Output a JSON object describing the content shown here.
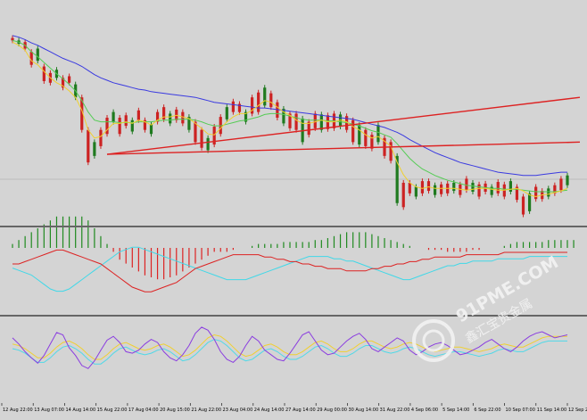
{
  "chart_data": {
    "type": "line",
    "panels": [
      "price",
      "macd",
      "stochastic"
    ],
    "time_labels": [
      "12 Aug 22:00",
      "13 Aug 07:00",
      "14 Aug 14:00",
      "15 Aug 22:00",
      "17 Aug 04:00",
      "20 Aug 15:00",
      "21 Aug 22:00",
      "23 Aug 04:00",
      "24 Aug 14:00",
      "27 Aug 14:00",
      "29 Aug 00:00",
      "30 Aug 14:00",
      "31 Aug 22:00",
      "4 Sep 06:00",
      "5 Sep 14:00",
      "6 Sep 22:00",
      "10 Sep 07:00",
      "11 Sep 14:00",
      "12 Sep 22:00"
    ],
    "price": {
      "candles": [
        [
          27,
          30
        ],
        [
          30,
          34
        ],
        [
          32,
          40
        ],
        [
          44,
          60
        ],
        [
          40,
          55
        ],
        [
          62,
          80
        ],
        [
          70,
          82
        ],
        [
          66,
          76
        ],
        [
          76,
          88
        ],
        [
          74,
          82
        ],
        [
          84,
          100
        ],
        [
          100,
          140
        ],
        [
          140,
          180
        ],
        [
          155,
          172
        ],
        [
          140,
          160
        ],
        [
          125,
          145
        ],
        [
          118,
          130
        ],
        [
          125,
          145
        ],
        [
          122,
          135
        ],
        [
          128,
          142
        ],
        [
          116,
          128
        ],
        [
          128,
          140
        ],
        [
          133,
          145
        ],
        [
          118,
          130
        ],
        [
          112,
          127
        ],
        [
          120,
          132
        ],
        [
          115,
          128
        ],
        [
          118,
          132
        ],
        [
          124,
          140
        ],
        [
          130,
          155
        ],
        [
          140,
          162
        ],
        [
          150,
          165
        ],
        [
          136,
          158
        ],
        [
          124,
          145
        ],
        [
          112,
          127
        ],
        [
          105,
          118
        ],
        [
          108,
          118
        ],
        [
          118,
          130
        ],
        [
          100,
          120
        ],
        [
          94,
          118
        ],
        [
          88,
          110
        ],
        [
          95,
          112
        ],
        [
          106,
          125
        ],
        [
          114,
          132
        ],
        [
          120,
          138
        ],
        [
          120,
          140
        ],
        [
          126,
          155
        ],
        [
          130,
          146
        ],
        [
          120,
          138
        ],
        [
          121,
          140
        ],
        [
          122,
          139
        ],
        [
          120,
          138
        ],
        [
          121,
          136
        ],
        [
          123,
          140
        ],
        [
          128,
          155
        ],
        [
          134,
          158
        ],
        [
          140,
          160
        ],
        [
          146,
          163
        ],
        [
          134,
          155
        ],
        [
          150,
          172
        ],
        [
          155,
          178
        ],
        [
          172,
          230
        ],
        [
          205,
          235
        ],
        [
          205,
          218
        ],
        [
          210,
          222
        ],
        [
          203,
          218
        ],
        [
          203,
          215
        ],
        [
          208,
          220
        ],
        [
          207,
          219
        ],
        [
          206,
          218
        ],
        [
          205,
          215
        ],
        [
          207,
          220
        ],
        [
          200,
          214
        ],
        [
          205,
          216
        ],
        [
          207,
          222
        ],
        [
          206,
          216
        ],
        [
          210,
          220
        ],
        [
          204,
          218
        ],
        [
          207,
          222
        ],
        [
          203,
          216
        ],
        [
          210,
          226
        ],
        [
          222,
          244
        ],
        [
          218,
          240
        ],
        [
          210,
          225
        ],
        [
          215,
          225
        ],
        [
          212,
          222
        ],
        [
          208,
          218
        ],
        [
          200,
          214
        ],
        [
          196,
          208
        ]
      ],
      "ma_fast": [
        32,
        36,
        42,
        55,
        60,
        68,
        76,
        82,
        86,
        92,
        100,
        116,
        140,
        150,
        148,
        140,
        132,
        132,
        130,
        132,
        128,
        130,
        134,
        128,
        124,
        124,
        122,
        124,
        126,
        132,
        138,
        145,
        146,
        138,
        130,
        124,
        120,
        120,
        116,
        110,
        104,
        106,
        112,
        118,
        122,
        128,
        132,
        132,
        130,
        128,
        130,
        130,
        128,
        130,
        136,
        140,
        146,
        150,
        148,
        154,
        160,
        180,
        195,
        205,
        210,
        212,
        210,
        212,
        212,
        212,
        212,
        213,
        214,
        213,
        212,
        212,
        213,
        214,
        214,
        213,
        212,
        215,
        220,
        222,
        220,
        219,
        217,
        215,
        212
      ],
      "ma_mid": [
        30,
        32,
        36,
        44,
        50,
        57,
        64,
        71,
        77,
        84,
        92,
        104,
        118,
        128,
        130,
        130,
        130,
        131,
        131,
        131,
        130,
        130,
        130,
        129,
        128,
        128,
        127,
        127,
        127,
        128,
        130,
        133,
        135,
        135,
        133,
        131,
        129,
        128,
        126,
        124,
        121,
        120,
        120,
        121,
        123,
        125,
        127,
        128,
        128,
        128,
        129,
        129,
        130,
        131,
        133,
        135,
        138,
        141,
        143,
        146,
        149,
        157,
        166,
        175,
        182,
        188,
        192,
        196,
        199,
        202,
        204,
        206,
        208,
        209,
        210,
        211,
        212,
        212,
        213,
        213,
        213,
        214,
        215,
        216,
        216,
        216,
        216,
        215,
        214
      ],
      "ma_slow": [
        24,
        26,
        29,
        33,
        36,
        40,
        44,
        48,
        52,
        55,
        58,
        62,
        67,
        72,
        76,
        79,
        82,
        84,
        86,
        88,
        90,
        91,
        93,
        94,
        95,
        96,
        97,
        98,
        99,
        100,
        102,
        104,
        106,
        107,
        108,
        109,
        110,
        111,
        112,
        113,
        113,
        114,
        115,
        116,
        117,
        118,
        119,
        120,
        121,
        122,
        123,
        124,
        125,
        126,
        127,
        129,
        131,
        133,
        135,
        137,
        140,
        143,
        147,
        152,
        156,
        160,
        164,
        168,
        171,
        174,
        177,
        180,
        182,
        184,
        186,
        188,
        190,
        192,
        193,
        194,
        195,
        196,
        196,
        196,
        195,
        194,
        193,
        192,
        192
      ],
      "trend_lines": [
        [
          [
            17,
            186
          ],
          [
            104,
            186
          ]
        ],
        [
          [
            104,
            186
          ],
          [
            104,
            186
          ]
        ]
      ],
      "ylim": [
        0,
        250
      ]
    },
    "macd": {
      "hist": [
        2,
        4,
        6,
        8,
        10,
        12,
        14,
        16,
        16,
        16,
        16,
        16,
        14,
        10,
        6,
        2,
        -2,
        -6,
        -8,
        -10,
        -12,
        -14,
        -15,
        -16,
        -16,
        -15,
        -14,
        -12,
        -10,
        -8,
        -6,
        -4,
        -2,
        -2,
        -2,
        -1,
        0,
        0,
        1,
        2,
        2,
        2,
        2,
        3,
        3,
        3,
        3,
        3,
        4,
        4,
        5,
        6,
        7,
        8,
        8,
        8,
        8,
        7,
        6,
        5,
        4,
        3,
        2,
        1,
        0,
        0,
        -1,
        -1,
        -1,
        -2,
        -2,
        -2,
        -2,
        -1,
        -1,
        0,
        0,
        0,
        1,
        2,
        3,
        3,
        3,
        3,
        3,
        4,
        4,
        4,
        4,
        4
      ],
      "signal": [
        0,
        0,
        1,
        2,
        3,
        4,
        5,
        6,
        6,
        5,
        4,
        3,
        2,
        1,
        0,
        -2,
        -4,
        -6,
        -8,
        -10,
        -11,
        -12,
        -12,
        -11,
        -10,
        -9,
        -8,
        -6,
        -4,
        -2,
        -1,
        0,
        1,
        2,
        3,
        4,
        4,
        4,
        4,
        4,
        3,
        3,
        2,
        2,
        1,
        1,
        0,
        0,
        -1,
        -1,
        -2,
        -2,
        -2,
        -3,
        -3,
        -3,
        -3,
        -2,
        -2,
        -1,
        -1,
        0,
        0,
        1,
        1,
        2,
        2,
        3,
        3,
        3,
        3,
        3,
        4,
        4,
        4,
        4,
        4,
        4,
        5,
        5,
        5,
        5,
        5,
        5,
        5,
        5,
        5,
        5,
        5
      ],
      "signal2": [
        -1,
        -2,
        -3,
        -4,
        -6,
        -8,
        -10,
        -11,
        -11,
        -10,
        -8,
        -6,
        -4,
        -2,
        0,
        2,
        4,
        6,
        7,
        8,
        8,
        7,
        6,
        5,
        4,
        3,
        2,
        1,
        0,
        -1,
        -2,
        -3,
        -4,
        -5,
        -6,
        -6,
        -6,
        -6,
        -5,
        -4,
        -3,
        -2,
        -1,
        0,
        1,
        2,
        3,
        4,
        4,
        4,
        4,
        3,
        3,
        2,
        2,
        1,
        0,
        -1,
        -2,
        -3,
        -4,
        -5,
        -6,
        -6,
        -5,
        -4,
        -3,
        -2,
        -1,
        0,
        0,
        1,
        1,
        2,
        2,
        2,
        2,
        3,
        3,
        3,
        3,
        3,
        4,
        4,
        4,
        4,
        4,
        4,
        4
      ]
    },
    "stochastic": {
      "k": [
        78,
        70,
        60,
        52,
        45,
        55,
        70,
        85,
        82,
        65,
        55,
        42,
        38,
        48,
        62,
        75,
        80,
        72,
        60,
        58,
        62,
        70,
        76,
        72,
        60,
        52,
        48,
        56,
        68,
        84,
        92,
        88,
        76,
        60,
        50,
        46,
        54,
        68,
        80,
        74,
        62,
        56,
        50,
        48,
        58,
        70,
        82,
        86,
        74,
        62,
        56,
        58,
        66,
        74,
        80,
        84,
        76,
        64,
        60,
        66,
        72,
        78,
        74,
        62,
        56,
        60,
        66,
        70,
        72,
        68,
        62,
        56,
        58,
        62,
        66,
        72,
        76,
        70,
        64,
        60,
        66,
        74,
        80,
        84,
        86,
        82,
        78,
        80,
        82
      ],
      "d": [
        70,
        68,
        64,
        58,
        52,
        52,
        58,
        66,
        72,
        74,
        70,
        64,
        56,
        50,
        50,
        56,
        64,
        70,
        72,
        68,
        64,
        62,
        64,
        68,
        70,
        66,
        60,
        54,
        56,
        62,
        70,
        78,
        82,
        80,
        74,
        66,
        58,
        54,
        56,
        62,
        68,
        70,
        66,
        60,
        56,
        56,
        60,
        66,
        72,
        74,
        70,
        64,
        60,
        60,
        64,
        70,
        74,
        74,
        70,
        66,
        64,
        66,
        70,
        72,
        70,
        66,
        62,
        60,
        62,
        64,
        66,
        66,
        64,
        62,
        60,
        62,
        64,
        68,
        70,
        68,
        66,
        66,
        70,
        74,
        78,
        80,
        80,
        80,
        80
      ],
      "ylim": [
        0,
        100
      ]
    }
  },
  "watermark": {
    "line1": "91PME.COM",
    "line2": "鑫汇宝贵金属"
  },
  "colors": {
    "background": "#d4d4d4",
    "candle_up": "#cc2222",
    "candle_down": "#1f7a1f",
    "ma_fast": "#f0d030",
    "ma_mid": "#55cc55",
    "ma_slow": "#3a3ae0",
    "trend": "#dd2222",
    "macd_hist_up": "#1f8a1f",
    "macd_hist_down": "#dd2222",
    "macd_signal": "#dd2222",
    "macd_signal2": "#40d8e8",
    "stoch_k": "#8a3ce0",
    "stoch_d": "#f0d030",
    "stoch_d2": "#4fd9e8",
    "separator": "#666666"
  }
}
